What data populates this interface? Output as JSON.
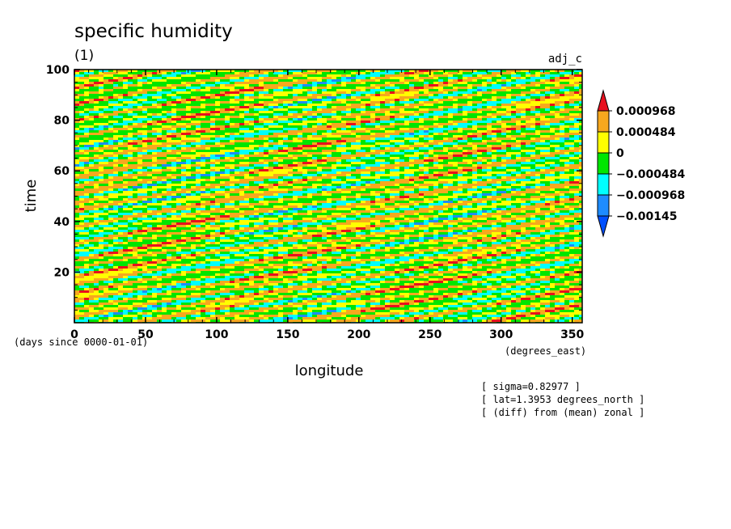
{
  "chart_data": {
    "type": "heatmap",
    "title": "specific humidity",
    "subtitle": "(1)",
    "run_label": "adj_c",
    "xlabel": "longitude",
    "x_units": "(degrees_east)",
    "ylabel": "time",
    "y_units": "(days since 0000-01-01)",
    "xlim": [
      0,
      357
    ],
    "ylim": [
      0,
      100
    ],
    "x_ticks": [
      "0",
      "50",
      "100",
      "150",
      "200",
      "250",
      "300",
      "350"
    ],
    "y_ticks": [
      "20",
      "40",
      "60",
      "80",
      "100"
    ],
    "colorbar": {
      "levels": [
        "0.000968",
        "0.000484",
        "0",
        "−0.000484",
        "−0.000968",
        "−0.00145"
      ],
      "colors": [
        "#e8101e",
        "#f7a81e",
        "#ffff00",
        "#00e600",
        "#00ffff",
        "#1e8cff",
        "#0050ff"
      ]
    },
    "annotations": [
      "[ sigma=0.82977 ]",
      "[ lat=1.3953 degrees_north ]",
      "[ (diff) from (mean) zonal ]"
    ]
  }
}
